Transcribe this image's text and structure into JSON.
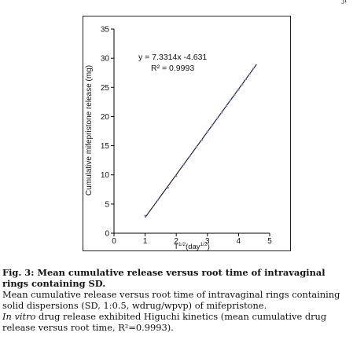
{
  "page_mark": "ji",
  "chart_data": {
    "type": "scatter",
    "xlabel_base": "T",
    "xlabel_sup": "1/2",
    "xlabel_unit_open": "(day",
    "xlabel_unit_sup": "1/2",
    "xlabel_unit_close": ")",
    "ylabel": "Cumulative mifepristone release (mg)",
    "xlim": [
      0,
      5
    ],
    "ylim": [
      0,
      35
    ],
    "x_ticks": [
      0,
      1,
      2,
      3,
      4,
      5
    ],
    "y_ticks": [
      0,
      5,
      10,
      15,
      20,
      25,
      30,
      35
    ],
    "x_tick_labels": [
      "0",
      "1",
      "2",
      "3",
      "4",
      "5"
    ],
    "y_tick_labels": [
      "0",
      "5",
      "10",
      "15",
      "20",
      "25",
      "30",
      "35"
    ],
    "points": {
      "x": [
        1.0,
        1.41,
        1.73,
        2.0,
        2.24,
        2.45,
        2.65,
        2.83,
        3.0,
        3.16,
        3.32,
        3.46,
        3.61,
        3.74,
        3.87,
        4.0,
        4.12,
        4.24,
        4.36,
        4.47
      ],
      "y": [
        3.0,
        5.7,
        7.8,
        9.8,
        11.8,
        13.3,
        14.8,
        16.0,
        17.4,
        18.5,
        19.7,
        20.7,
        21.8,
        22.8,
        23.7,
        24.6,
        25.5,
        26.4,
        27.3,
        28.2
      ]
    },
    "fit": {
      "slope": 7.3314,
      "intercept": -4.631,
      "x_range": [
        1.0,
        4.58
      ]
    },
    "equation": "y = 7.3314x -4.631",
    "r2_label": "R² = 0.9993"
  },
  "caption": {
    "title": "Fig. 3: Mean cumulative release versus root time of intravaginal rings containing SD.",
    "line2": "Mean cumulative release versus root time of intravaginal rings containing solid dispersions (SD, 1:0.5, wdrug/wpvp) of mifepristone.",
    "line3_italic": "In vitro",
    "line3_rest": " drug release exhibited Higuchi kinetics (mean cumulative drug release versus root time, R²=0.9993)."
  }
}
